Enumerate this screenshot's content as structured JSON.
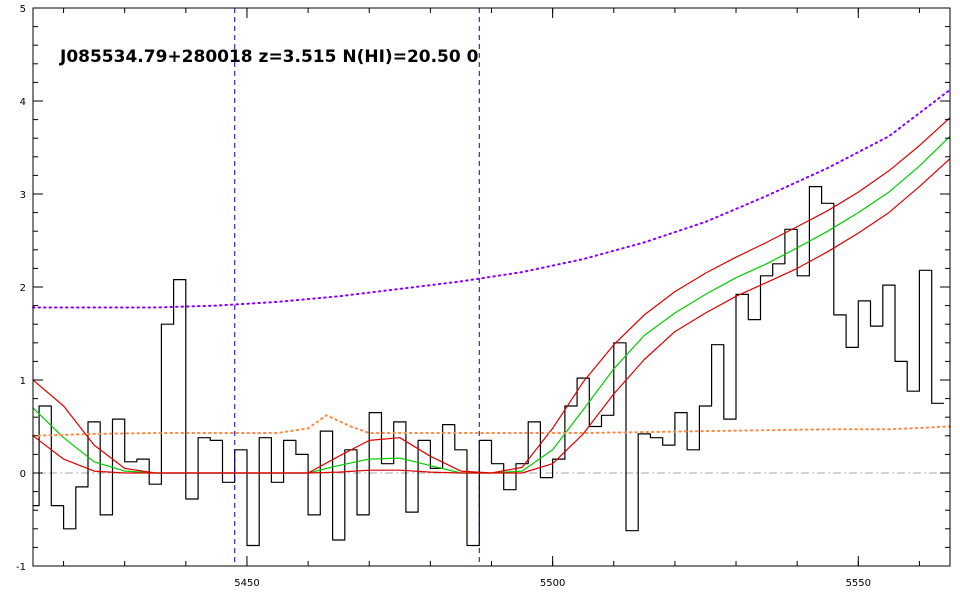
{
  "chart_data": {
    "type": "line",
    "title": "J085534.79+280018 z=3.515 N(HI)=20.50 0",
    "xlabel": "",
    "ylabel": "",
    "xlim": [
      5415,
      5565
    ],
    "ylim": [
      -1,
      5
    ],
    "grid": false,
    "x_ticks": [
      5450,
      5500,
      5550
    ],
    "x_tick_labels": [
      "5450",
      "5500",
      "5550"
    ],
    "y_ticks": [
      -1,
      0,
      1,
      2,
      3,
      4,
      5
    ],
    "y_tick_labels": [
      "-1",
      "0",
      "1",
      "2",
      "3",
      "4",
      "5"
    ],
    "vlines": [
      {
        "x": 5448,
        "color": "#0000cc",
        "style": "dashed"
      },
      {
        "x": 5488,
        "color": "#0000cc",
        "style": "dashed"
      }
    ],
    "hlines": [
      {
        "y": 0,
        "color": "#aaaaaa",
        "style": "dashdot"
      }
    ],
    "series": [
      {
        "color": "#000000",
        "style": "steps",
        "x": [
          5415,
          5417,
          5419,
          5421,
          5423,
          5425,
          5427,
          5429,
          5431,
          5433,
          5435,
          5437,
          5439,
          5441,
          5443,
          5445,
          5447,
          5449,
          5451,
          5453,
          5455,
          5457,
          5459,
          5461,
          5463,
          5465,
          5467,
          5469,
          5471,
          5473,
          5475,
          5477,
          5479,
          5481,
          5483,
          5485,
          5487,
          5489,
          5491,
          5493,
          5495,
          5497,
          5499,
          5501,
          5503,
          5505,
          5507,
          5509,
          5511,
          5513,
          5515,
          5517,
          5519,
          5521,
          5523,
          5525,
          5527,
          5529,
          5531,
          5533,
          5535,
          5537,
          5539,
          5541,
          5543,
          5545,
          5547,
          5549,
          5551,
          5553,
          5555,
          5557,
          5559,
          5561,
          5563
        ],
        "y": [
          -0.35,
          0.72,
          -0.35,
          -0.6,
          -0.15,
          0.55,
          -0.45,
          0.58,
          0.12,
          0.15,
          -0.12,
          1.6,
          2.08,
          -0.28,
          0.38,
          0.35,
          -0.1,
          0.25,
          -0.78,
          0.38,
          -0.1,
          0.35,
          0.2,
          -0.45,
          0.45,
          -0.72,
          0.25,
          -0.45,
          0.65,
          0.1,
          0.55,
          -0.42,
          0.35,
          0.05,
          0.52,
          0.25,
          -0.78,
          0.35,
          0.1,
          -0.18,
          0.1,
          0.55,
          -0.05,
          0.15,
          0.72,
          1.02,
          0.5,
          0.62,
          1.4,
          -0.62,
          0.42,
          0.38,
          0.3,
          0.65,
          0.25,
          0.72,
          1.38,
          0.58,
          1.92,
          1.65,
          2.12,
          2.25,
          2.62,
          2.12,
          3.08,
          2.9,
          1.7,
          1.35,
          1.85,
          1.58,
          2.02,
          1.2,
          0.88,
          2.18,
          0.75
        ]
      },
      {
        "color": "#00cc00",
        "style": "line",
        "x": [
          5415,
          5420,
          5425,
          5430,
          5435,
          5440,
          5445,
          5450,
          5455,
          5460,
          5465,
          5470,
          5475,
          5480,
          5485,
          5490,
          5495,
          5500,
          5505,
          5510,
          5515,
          5520,
          5525,
          5530,
          5535,
          5540,
          5545,
          5550,
          5555,
          5560,
          5565
        ],
        "y": [
          0.7,
          0.38,
          0.12,
          0.02,
          0,
          0,
          0,
          0,
          0,
          0,
          0.08,
          0.15,
          0.16,
          0.08,
          0,
          0,
          0.02,
          0.25,
          0.68,
          1.12,
          1.48,
          1.72,
          1.92,
          2.1,
          2.25,
          2.42,
          2.6,
          2.8,
          3.02,
          3.3,
          3.62
        ]
      },
      {
        "color": "#dd0000",
        "style": "line",
        "x": [
          5415,
          5420,
          5425,
          5430,
          5435,
          5440,
          5445,
          5450,
          5455,
          5460,
          5465,
          5470,
          5475,
          5480,
          5485,
          5490,
          5495,
          5500,
          5505,
          5510,
          5515,
          5520,
          5525,
          5530,
          5535,
          5540,
          5545,
          5550,
          5555,
          5560,
          5565
        ],
        "y": [
          1.0,
          0.72,
          0.3,
          0.05,
          0,
          0,
          0,
          0,
          0,
          0,
          0.18,
          0.35,
          0.38,
          0.18,
          0.02,
          0,
          0.06,
          0.48,
          0.98,
          1.38,
          1.7,
          1.95,
          2.15,
          2.32,
          2.48,
          2.65,
          2.82,
          3.02,
          3.25,
          3.52,
          3.82
        ]
      },
      {
        "color": "#dd0000",
        "style": "line",
        "x": [
          5415,
          5420,
          5425,
          5430,
          5435,
          5440,
          5445,
          5450,
          5455,
          5460,
          5465,
          5470,
          5475,
          5480,
          5485,
          5490,
          5495,
          5500,
          5505,
          5510,
          5515,
          5520,
          5525,
          5530,
          5535,
          5540,
          5545,
          5550,
          5555,
          5560,
          5565
        ],
        "y": [
          0.4,
          0.15,
          0.02,
          0,
          0,
          0,
          0,
          0,
          0,
          0,
          0.01,
          0.03,
          0.03,
          0.01,
          0,
          0,
          0,
          0.1,
          0.42,
          0.85,
          1.22,
          1.52,
          1.72,
          1.9,
          2.05,
          2.2,
          2.38,
          2.58,
          2.8,
          3.08,
          3.38
        ]
      },
      {
        "color": "#8800ff",
        "style": "dotted",
        "x": [
          5415,
          5425,
          5435,
          5445,
          5455,
          5465,
          5475,
          5485,
          5495,
          5505,
          5515,
          5525,
          5535,
          5545,
          5555,
          5565
        ],
        "y": [
          1.78,
          1.78,
          1.78,
          1.8,
          1.84,
          1.9,
          1.98,
          2.06,
          2.16,
          2.3,
          2.48,
          2.7,
          2.98,
          3.28,
          3.62,
          4.12
        ]
      },
      {
        "color": "#ff8844",
        "style": "dotted",
        "x": [
          5415,
          5425,
          5435,
          5445,
          5455,
          5460,
          5463,
          5467,
          5470,
          5475,
          5485,
          5495,
          5505,
          5515,
          5525,
          5535,
          5545,
          5555,
          5565
        ],
        "y": [
          0.4,
          0.42,
          0.43,
          0.43,
          0.43,
          0.48,
          0.62,
          0.5,
          0.43,
          0.43,
          0.43,
          0.43,
          0.43,
          0.44,
          0.45,
          0.46,
          0.47,
          0.47,
          0.5
        ]
      }
    ]
  }
}
